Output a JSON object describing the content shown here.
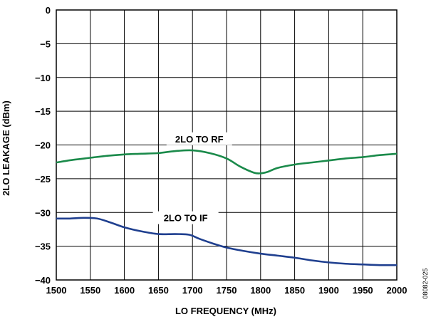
{
  "chart_data": {
    "type": "line",
    "xlabel": "LO FREQUENCY (MHz)",
    "ylabel": "2LO LEAKAGE (dBm)",
    "xlim": [
      1500,
      2000
    ],
    "ylim": [
      -40,
      0
    ],
    "x_ticks": [
      1500,
      1550,
      1600,
      1650,
      1700,
      1750,
      1800,
      1850,
      1900,
      1950,
      2000
    ],
    "y_ticks": [
      0,
      -5,
      -10,
      -15,
      -20,
      -25,
      -30,
      -35,
      -40
    ],
    "grid": true,
    "series": [
      {
        "name": "2LO TO RF",
        "color": "#1a8a4a",
        "label_at": [
          1710,
          -19.5
        ],
        "x": [
          1500,
          1525,
          1550,
          1575,
          1600,
          1625,
          1650,
          1675,
          1700,
          1725,
          1750,
          1770,
          1790,
          1800,
          1810,
          1825,
          1850,
          1875,
          1900,
          1925,
          1950,
          1975,
          2000
        ],
        "y": [
          -22.6,
          -22.2,
          -21.9,
          -21.6,
          -21.4,
          -21.3,
          -21.2,
          -20.9,
          -20.8,
          -21.2,
          -22.0,
          -23.2,
          -24.1,
          -24.2,
          -24.0,
          -23.4,
          -22.9,
          -22.6,
          -22.3,
          -22.0,
          -21.8,
          -21.5,
          -21.3
        ]
      },
      {
        "name": "2LO TO IF",
        "color": "#1f3f8f",
        "label_at": [
          1690,
          -31.2
        ],
        "x": [
          1500,
          1520,
          1540,
          1560,
          1580,
          1600,
          1625,
          1650,
          1675,
          1695,
          1710,
          1730,
          1750,
          1775,
          1800,
          1825,
          1850,
          1875,
          1900,
          1925,
          1950,
          1975,
          2000
        ],
        "y": [
          -30.9,
          -30.9,
          -30.8,
          -30.9,
          -31.5,
          -32.2,
          -32.8,
          -33.2,
          -33.2,
          -33.3,
          -33.9,
          -34.6,
          -35.2,
          -35.7,
          -36.1,
          -36.4,
          -36.7,
          -37.1,
          -37.4,
          -37.6,
          -37.7,
          -37.8,
          -37.8
        ]
      }
    ]
  },
  "figure_id": "08082-025"
}
